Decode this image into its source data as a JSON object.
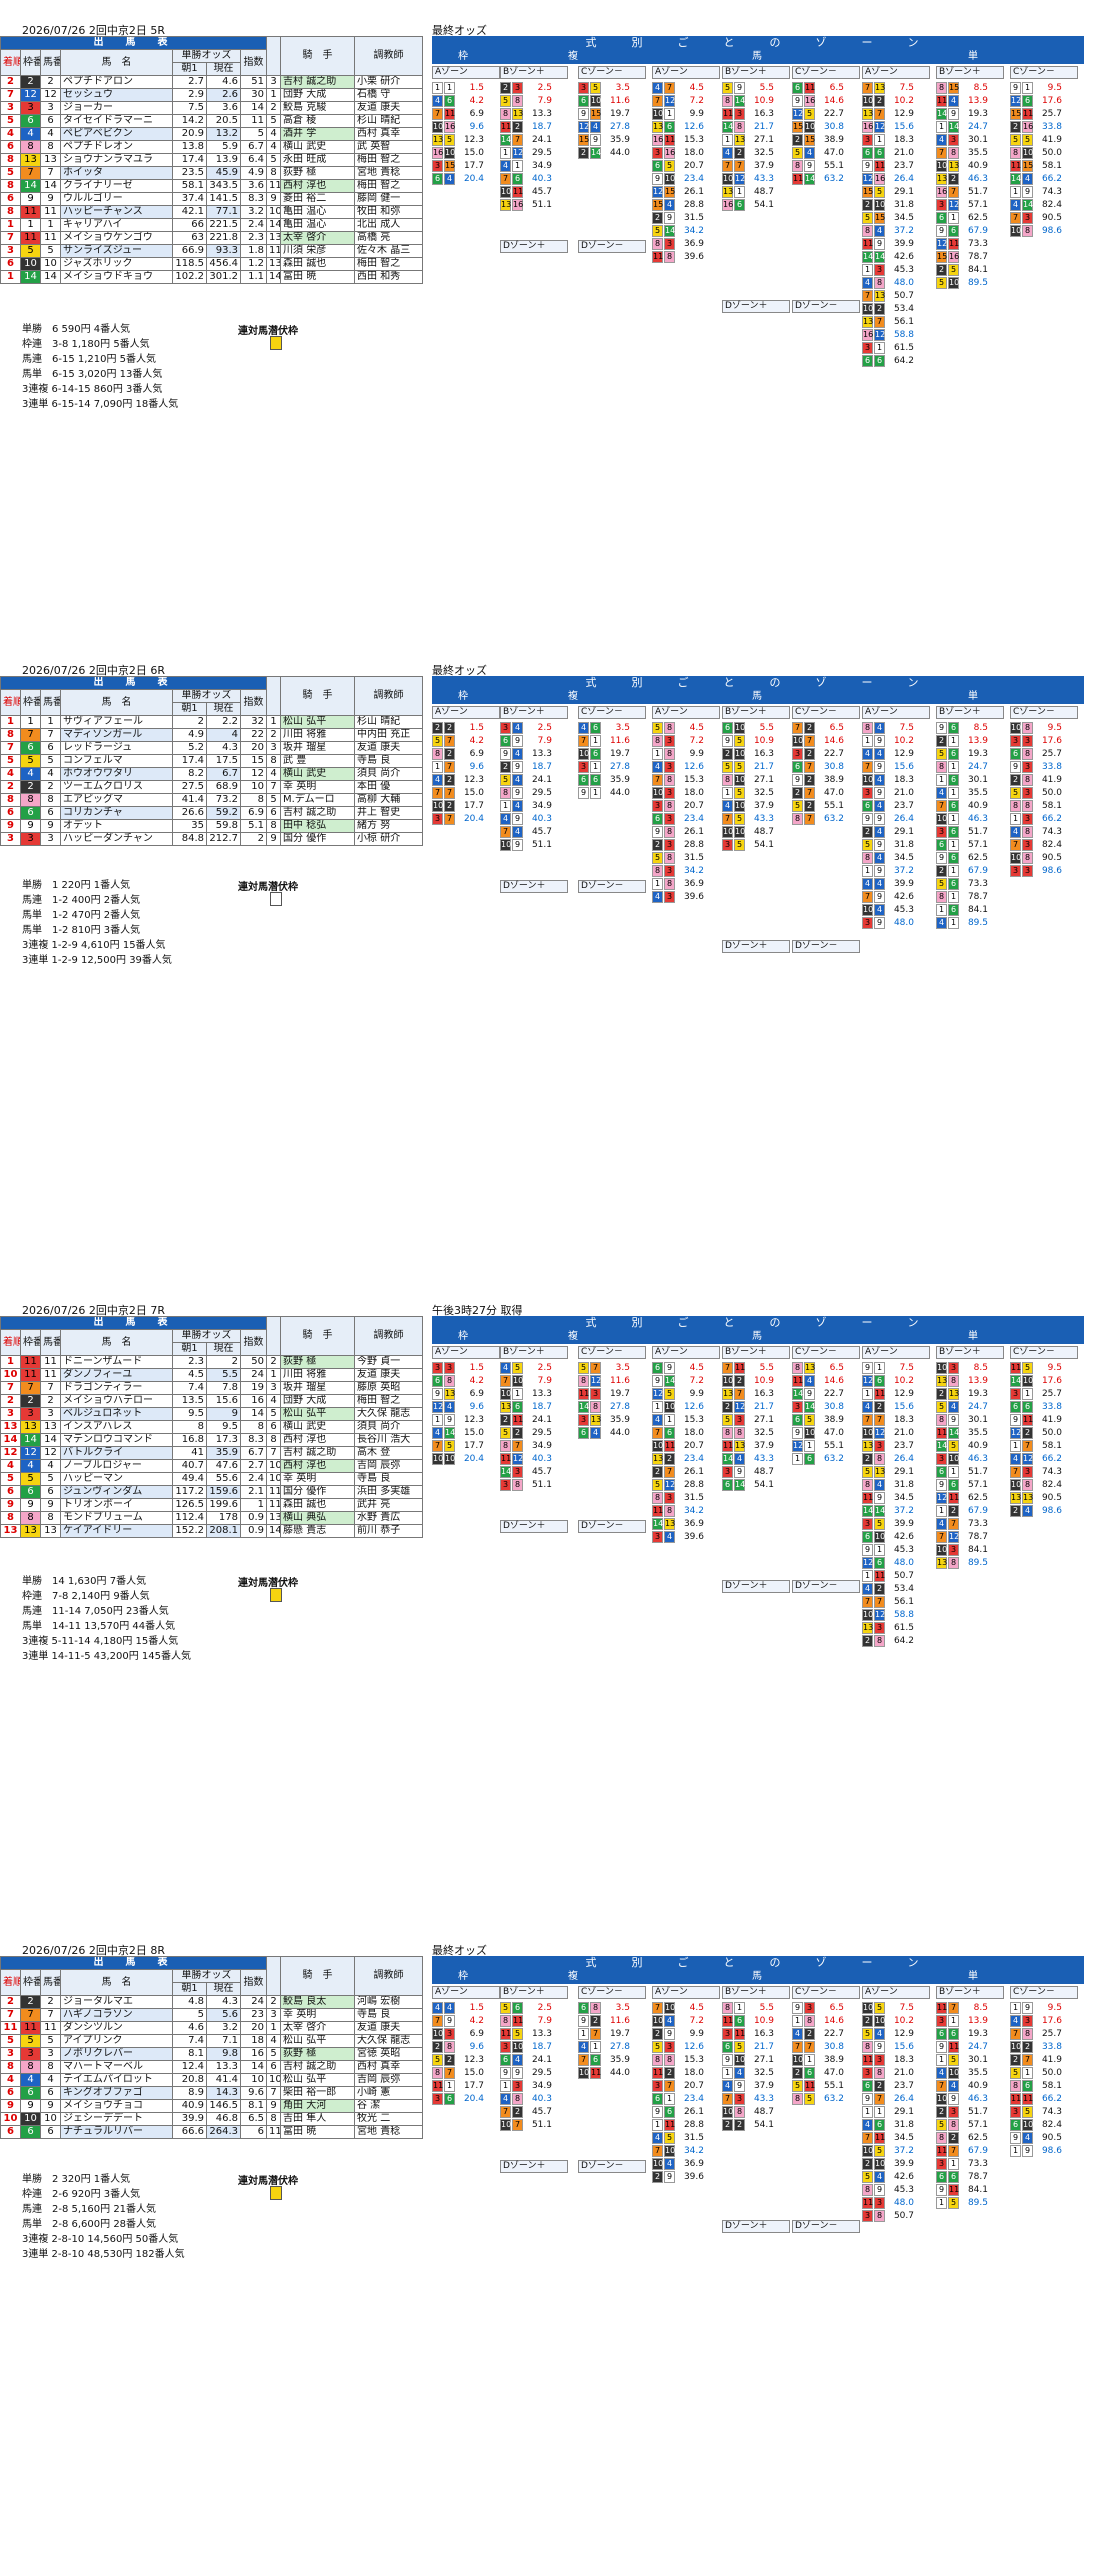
{
  "races": [
    {
      "header": "2026/07/26 2回中京2日 5R",
      "odds_title": "最終オッズ",
      "entries": [
        [
          "2",
          "2",
          "ペプチドアロン",
          "2.7",
          "4.6",
          "51",
          "3",
          "吉村 誠之助",
          "小栗 研介"
        ],
        [
          "7",
          "12",
          "セッシュウ",
          "2.9",
          "2.6",
          "30",
          "1",
          "団野 大成",
          "石橋 守"
        ],
        [
          "3",
          "3",
          "ジョーカー",
          "7.5",
          "3.6",
          "14",
          "2",
          "鮫島 克駿",
          "友道 康夫"
        ],
        [
          "5",
          "6",
          "タイセイドラマーニ",
          "14.2",
          "20.5",
          "11",
          "5",
          "高倉 稜",
          "杉山 晴紀"
        ],
        [
          "4",
          "4",
          "ペピアベビクン",
          "20.9",
          "13.2",
          "5",
          "4",
          "酒井 学",
          "西村 真幸"
        ],
        [
          "6",
          "8",
          "ペプチドレオン",
          "13.8",
          "5.9",
          "6.7",
          "4",
          "横山 武史",
          "武 英智"
        ],
        [
          "8",
          "13",
          "ショウナンラマユラ",
          "17.4",
          "13.9",
          "6.4",
          "5",
          "永田 旺成",
          "梅田 智之"
        ],
        [
          "5",
          "7",
          "ホイッタ",
          "23.5",
          "45.9",
          "4.9",
          "8",
          "荻野 極",
          "宮地 貴稔"
        ],
        [
          "8",
          "14",
          "クライナリーゼ",
          "58.1",
          "343.5",
          "3.6",
          "11",
          "西村 淳也",
          "梅田 智之"
        ],
        [
          "6",
          "9",
          "ウルルゴリー",
          "37.4",
          "141.5",
          "8.3",
          "9",
          "菱田 裕二",
          "藤岡 健一"
        ],
        [
          "8",
          "11",
          "ハッピーチャンス",
          "42.1",
          "77.1",
          "3.2",
          "10",
          "亀田 温心",
          "牧田 和弥"
        ],
        [
          "1",
          "1",
          "キャリアハイ",
          "66",
          "221.5",
          "2.4",
          "14",
          "亀田 温心",
          "北出 成人"
        ],
        [
          "7",
          "11",
          "メイショウケンゴウ",
          "63",
          "221.8",
          "2.3",
          "13",
          "太宰 啓介",
          "高橋 亮"
        ],
        [
          "3",
          "5",
          "サンライズジュー",
          "66.9",
          "93.3",
          "1.8",
          "11",
          "川須 栄彦",
          "佐々木 晶三"
        ],
        [
          "6",
          "10",
          "ジャズホリック",
          "118.5",
          "456.4",
          "1.2",
          "13",
          "森田 誠也",
          "梅田 智之"
        ],
        [
          "1",
          "14",
          "メイショウドキョウ",
          "102.2",
          "301.2",
          "1.1",
          "14",
          "富田 暁",
          "西田 和秀"
        ]
      ],
      "results": [
        "単勝　6 590円 4番人気",
        "枠連　3-8 1,180円 5番人気",
        "馬連　6-15 1,210円 5番人気",
        "馬単　6-15 3,020円 13番人気",
        "3連複 6-14-15 860円 3番人気",
        "3連単 6-15-14 7,090円 18番人気"
      ],
      "latent_label": "連対馬潜伏枠"
    },
    {
      "header": "2026/07/26 2回中京2日 6R",
      "odds_title": "最終オッズ",
      "entries": [
        [
          "1",
          "1",
          "サヴィアフェール",
          "2",
          "2.2",
          "32",
          "1",
          "松山 弘平",
          "杉山 晴紀"
        ],
        [
          "8",
          "7",
          "マディソンガール",
          "4.9",
          "4",
          "22",
          "2",
          "川田 将雅",
          "中内田 充正"
        ],
        [
          "7",
          "6",
          "レッドラージュ",
          "5.2",
          "4.3",
          "20",
          "3",
          "坂井 瑠星",
          "友道 康夫"
        ],
        [
          "5",
          "5",
          "コンフェルマ",
          "17.4",
          "17.5",
          "15",
          "8",
          "武 豊",
          "寺島 良"
        ],
        [
          "4",
          "4",
          "ホウオウワタリ",
          "8.2",
          "6.7",
          "12",
          "4",
          "横山 武史",
          "須貝 尚介"
        ],
        [
          "2",
          "2",
          "ツーエムクロリス",
          "27.5",
          "68.9",
          "10",
          "7",
          "幸 英明",
          "本田 優"
        ],
        [
          "8",
          "8",
          "エアピッグマ",
          "41.4",
          "73.2",
          "8",
          "5",
          "M.デムーロ",
          "高柳 大輔"
        ],
        [
          "6",
          "6",
          "コリカンチャ",
          "26.6",
          "59.2",
          "6.9",
          "6",
          "吉村 誠之助",
          "井上 智史"
        ],
        [
          "9",
          "9",
          "オデット",
          "35",
          "59.8",
          "5.1",
          "8",
          "田中 稔弘",
          "緒方 努"
        ],
        [
          "3",
          "3",
          "ハッピーダンチャン",
          "84.8",
          "212.7",
          "2",
          "9",
          "国分 優作",
          "小椋 研介"
        ]
      ],
      "results": [
        "単勝　1 220円 1番人気",
        "馬連　1-2 400円 2番人気",
        "馬単　1-2 470円 2番人気",
        "馬単　1-2 810円 3番人気",
        "3連複 1-2-9 4,610円 15番人気",
        "3連単 1-2-9 12,500円 39番人気"
      ],
      "latent_label": "連対馬潜伏枠"
    },
    {
      "header": "2026/07/26 2回中京2日 7R",
      "odds_title": "午後3時27分 取得",
      "entries": [
        [
          "1",
          "11",
          "ドニーンザムード",
          "2.3",
          "2",
          "50",
          "2",
          "荻野 極",
          "今野 貞一"
        ],
        [
          "10",
          "11",
          "ダンノフィーユ",
          "4.5",
          "5.5",
          "24",
          "1",
          "川田 将雅",
          "友道 康夫"
        ],
        [
          "7",
          "7",
          "ドラゴンティラー",
          "7.4",
          "7.8",
          "19",
          "3",
          "坂井 瑠星",
          "藤原 英昭"
        ],
        [
          "2",
          "2",
          "メイショウハテロー",
          "13.5",
          "15.6",
          "16",
          "4",
          "団野 大成",
          "梅田 智之"
        ],
        [
          "3",
          "3",
          "ベルジュロネット",
          "9.5",
          "9",
          "14",
          "5",
          "松山 弘平",
          "大久保 龍志"
        ],
        [
          "13",
          "13",
          "インスアハレス",
          "8",
          "9.5",
          "8",
          "6",
          "横山 武史",
          "須貝 尚介"
        ],
        [
          "14",
          "14",
          "マテンロウコマンド",
          "16.8",
          "17.3",
          "8.3",
          "8",
          "西村 淳也",
          "長谷川 浩大"
        ],
        [
          "12",
          "12",
          "バトルクライ",
          "41",
          "35.9",
          "6.7",
          "7",
          "吉村 誠之助",
          "高木 登"
        ],
        [
          "4",
          "4",
          "ノーブルロジャー",
          "40.7",
          "47.6",
          "2.7",
          "10",
          "西村 淳也",
          "吉岡 辰弥"
        ],
        [
          "5",
          "5",
          "ハッピーマン",
          "49.4",
          "55.6",
          "2.4",
          "10",
          "幸 英明",
          "寺島 良"
        ],
        [
          "6",
          "6",
          "ジュンヴィンダム",
          "117.2",
          "159.6",
          "2.1",
          "11",
          "国分 優作",
          "浜田 多実雄"
        ],
        [
          "9",
          "9",
          "トリオンボーイ",
          "126.5",
          "199.6",
          "1",
          "11",
          "森田 誠也",
          "武井 亮"
        ],
        [
          "8",
          "8",
          "モンドブリューム",
          "112.4",
          "178",
          "0.9",
          "13",
          "横山 典弘",
          "水野 貴広"
        ],
        [
          "13",
          "13",
          "ケイアイドリー",
          "152.2",
          "208.1",
          "0.9",
          "14",
          "藤懸 貴志",
          "前川 恭子"
        ]
      ],
      "results": [
        "単勝　14 1,630円 7番人気",
        "枠連　7-8 2,140円 9番人気",
        "馬連　11-14 7,050円 23番人気",
        "馬単　14-11 13,570円 44番人気",
        "3連複 5-11-14 4,180円 15番人気",
        "3連単 14-11-5 43,200円 145番人気"
      ],
      "latent_label": "連対馬潜伏枠"
    },
    {
      "header": "2026/07/26 2回中京2日 8R",
      "odds_title": "最終オッズ",
      "entries": [
        [
          "2",
          "2",
          "ジョータルマエ",
          "4.8",
          "4.3",
          "24",
          "2",
          "鮫島 良太",
          "河嶋 宏樹"
        ],
        [
          "7",
          "7",
          "ハギノコラソン",
          "5",
          "5.6",
          "23",
          "3",
          "幸 英明",
          "寺島 良"
        ],
        [
          "11",
          "11",
          "ダンシツルン",
          "4.6",
          "3.2",
          "20",
          "1",
          "太宰 啓介",
          "友道 康夫"
        ],
        [
          "5",
          "5",
          "アイプリンク",
          "7.4",
          "7.1",
          "18",
          "4",
          "松山 弘平",
          "大久保 龍志"
        ],
        [
          "3",
          "3",
          "ノボリクレバー",
          "8.1",
          "9.8",
          "16",
          "5",
          "荻野 極",
          "宮徳 英昭"
        ],
        [
          "8",
          "8",
          "マハートマーベル",
          "12.4",
          "13.3",
          "14",
          "6",
          "吉村 誠之助",
          "西村 真幸"
        ],
        [
          "4",
          "4",
          "テイエムパイロット",
          "20.8",
          "41.4",
          "10",
          "10",
          "松山 弘平",
          "吉岡 辰弥"
        ],
        [
          "6",
          "6",
          "キングオブファゴ",
          "8.9",
          "14.3",
          "9.6",
          "7",
          "柴田 裕一郎",
          "小崎 憲"
        ],
        [
          "9",
          "9",
          "メイショウチョコ",
          "40.9",
          "146.5",
          "8.1",
          "9",
          "角田 大河",
          "谷 潔"
        ],
        [
          "10",
          "10",
          "ジェシーデデート",
          "39.9",
          "46.8",
          "6.5",
          "8",
          "吉田 隼人",
          "牧光 二"
        ],
        [
          "6",
          "6",
          "ナチュラルリバー",
          "66.6",
          "264.3",
          "6",
          "11",
          "富田 暁",
          "宮地 貴稔"
        ]
      ],
      "results": [
        "単勝　2 320円 1番人気",
        "枠連　2-6 920円 3番人気",
        "馬連　2-8 5,160円 21番人気",
        "馬単　2-8 6,600円 28番人気",
        "3連複 2-8-10 14,560円 50番人気",
        "3連単 2-8-10 48,530円 182番人気"
      ],
      "latent_label": "連対馬潜伏枠"
    }
  ],
  "labels": {
    "table_title": "出　馬　表",
    "col_rank": "着順",
    "col_waku": "枠番",
    "col_uma": "馬番",
    "col_name": "馬　名",
    "col_odds": "単勝オッズ",
    "col_odds_first": "朝1",
    "col_odds_now": "現在",
    "col_idx": "指数",
    "col_ninki": "人気",
    "col_jockey": "騎　手",
    "col_trainer": "調教師",
    "zone_title": "式　別　ご　と　の　ゾ　ー　ン",
    "sub_waku": "枠",
    "sub_fuku": "複",
    "sub_uma": "馬",
    "sub_fuku2": "複",
    "sub_uma2": "馬",
    "sub_tan": "単",
    "zone_a": "Aゾーン",
    "zone_b": "Bゾーン＋",
    "zone_c": "Cゾーン－",
    "zone_d": "Dゾーン＋",
    "zone_d2": "Dゾーン－"
  },
  "colors": {
    "header_blue": "#1a5fb4",
    "rank_red": "#d00000",
    "waku": [
      "#ffffff",
      "#333333",
      "#e53935",
      "#1e63c4",
      "#f6d410",
      "#23a046",
      "#f28c1e",
      "#f4a6c8"
    ]
  }
}
